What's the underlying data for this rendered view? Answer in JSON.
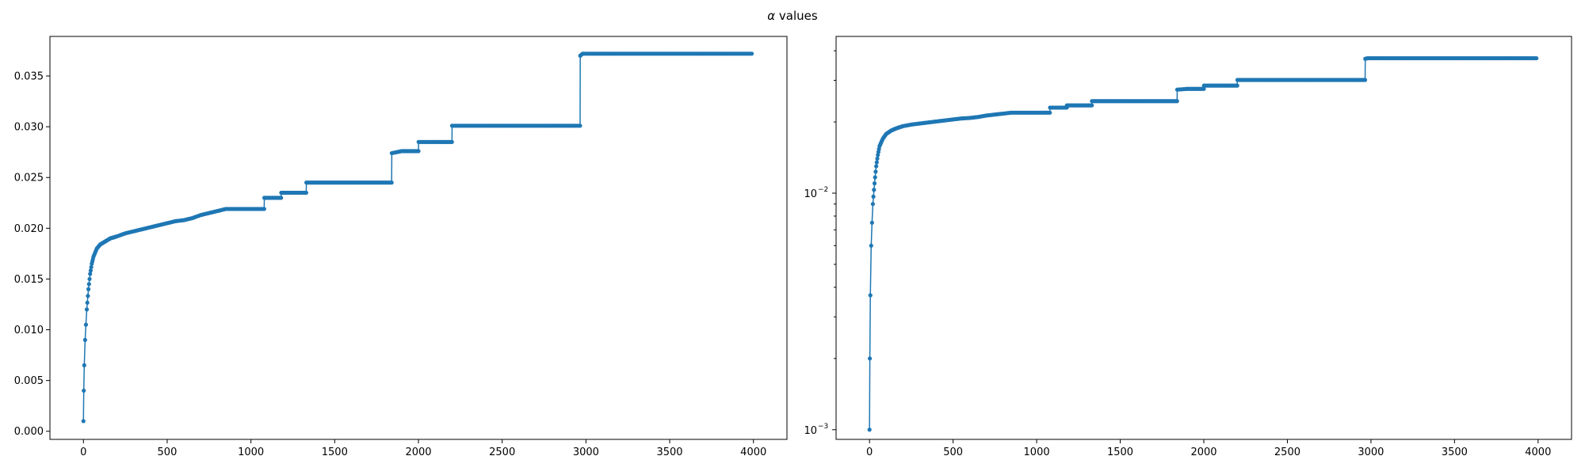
{
  "figure": {
    "suptitle_symbol": "α",
    "suptitle_text": " values"
  },
  "chart_data": [
    {
      "type": "line",
      "yscale": "linear",
      "xlim": [
        -200,
        4200
      ],
      "ylim": [
        -0.0008,
        0.0389
      ],
      "xticks": [
        0,
        500,
        1000,
        1500,
        2000,
        2500,
        3000,
        3500,
        4000
      ],
      "yticks": [
        0.0,
        0.005,
        0.01,
        0.015,
        0.02,
        0.025,
        0.03,
        0.035
      ],
      "ytick_labels": [
        "0.000",
        "0.005",
        "0.010",
        "0.015",
        "0.020",
        "0.025",
        "0.030",
        "0.035"
      ],
      "grid": false,
      "color": "#1f77b4",
      "marker": "dot",
      "series": [
        {
          "x": [
            0,
            2,
            5,
            10,
            15,
            20,
            30,
            40,
            50,
            60,
            80,
            100,
            130,
            160,
            200,
            250,
            300,
            350,
            400,
            450,
            500,
            550,
            600,
            650,
            700,
            750,
            800,
            850,
            900,
            1000,
            1079,
            1080,
            1180,
            1181,
            1300,
            1330,
            1331,
            1600,
            1840,
            1841,
            1900,
            2000,
            2001,
            2100,
            2200,
            2201,
            2500,
            2965,
            2966,
            2980,
            3200,
            3600,
            3990
          ],
          "y": [
            0.001,
            0.004,
            0.0065,
            0.009,
            0.0105,
            0.012,
            0.014,
            0.0155,
            0.0165,
            0.0172,
            0.018,
            0.0184,
            0.0187,
            0.019,
            0.0192,
            0.0195,
            0.0197,
            0.0199,
            0.0201,
            0.0203,
            0.0205,
            0.0207,
            0.0208,
            0.021,
            0.0213,
            0.0215,
            0.0217,
            0.0219,
            0.0219,
            0.0219,
            0.0219,
            0.023,
            0.023,
            0.0235,
            0.0235,
            0.0235,
            0.0245,
            0.0245,
            0.0245,
            0.0274,
            0.0276,
            0.0276,
            0.0285,
            0.0285,
            0.0285,
            0.0301,
            0.0301,
            0.0301,
            0.037,
            0.0372,
            0.0372,
            0.0372,
            0.0372
          ]
        }
      ]
    },
    {
      "type": "line",
      "yscale": "log",
      "xlim": [
        -200,
        4200
      ],
      "ylim": [
        0.00091,
        0.046
      ],
      "xticks": [
        0,
        500,
        1000,
        1500,
        2000,
        2500,
        3000,
        3500,
        4000
      ],
      "yticks_major": [
        0.001,
        0.01
      ],
      "ytick_labels": [
        "10",
        "10"
      ],
      "ytick_exponents": [
        "−3",
        "−2"
      ],
      "yticks_minor": [
        0.002,
        0.003,
        0.004,
        0.005,
        0.006,
        0.007,
        0.008,
        0.009,
        0.02,
        0.03,
        0.04
      ],
      "grid": false,
      "color": "#1f77b4",
      "marker": "dot",
      "series": [
        {
          "x": [
            0,
            2,
            5,
            10,
            15,
            20,
            30,
            40,
            50,
            60,
            80,
            100,
            130,
            160,
            200,
            250,
            300,
            350,
            400,
            450,
            500,
            550,
            600,
            650,
            700,
            750,
            800,
            850,
            900,
            1000,
            1079,
            1080,
            1180,
            1181,
            1300,
            1330,
            1331,
            1600,
            1840,
            1841,
            1900,
            2000,
            2001,
            2100,
            2200,
            2201,
            2500,
            2965,
            2966,
            2980,
            3200,
            3600,
            3990
          ],
          "y": [
            0.001,
            0.002,
            0.0037,
            0.006,
            0.0075,
            0.009,
            0.011,
            0.013,
            0.0145,
            0.0158,
            0.017,
            0.0178,
            0.0184,
            0.0188,
            0.0192,
            0.0195,
            0.0197,
            0.0199,
            0.0201,
            0.0203,
            0.0205,
            0.0207,
            0.0208,
            0.021,
            0.0213,
            0.0215,
            0.0217,
            0.0219,
            0.0219,
            0.0219,
            0.0219,
            0.023,
            0.023,
            0.0235,
            0.0235,
            0.0235,
            0.0245,
            0.0245,
            0.0245,
            0.0274,
            0.0276,
            0.0276,
            0.0285,
            0.0285,
            0.0285,
            0.0301,
            0.0301,
            0.0301,
            0.037,
            0.0372,
            0.0372,
            0.0372,
            0.0372
          ]
        }
      ]
    }
  ]
}
